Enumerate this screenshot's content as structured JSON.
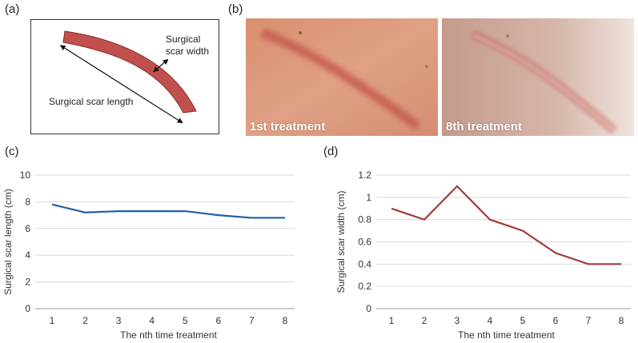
{
  "panels": {
    "a": "(a)",
    "b": "(b)",
    "c": "(c)",
    "d": "(d)"
  },
  "diagram": {
    "width_label_line1": "Surgical",
    "width_label_line2": "scar width",
    "length_label": "Surgical scar length",
    "scar_color": "#c0504d"
  },
  "photos": [
    {
      "caption": "1st treatment"
    },
    {
      "caption": "8th treatment"
    }
  ],
  "chart_data": [
    {
      "type": "line",
      "x": [
        1,
        2,
        3,
        4,
        5,
        6,
        7,
        8
      ],
      "values": [
        7.8,
        7.2,
        7.3,
        7.3,
        7.3,
        7.0,
        6.8,
        6.8
      ],
      "xlabel": "The nth time treatment",
      "ylabel": "Surgical scar length (cm)",
      "ylim": [
        0,
        10
      ],
      "yticks": [
        0,
        2,
        4,
        6,
        8,
        10
      ],
      "ytick_labels": [
        "0",
        "2",
        "4",
        "6",
        "8",
        "10"
      ],
      "grid": true,
      "color": "#1f5fa6"
    },
    {
      "type": "line",
      "x": [
        1,
        2,
        3,
        4,
        5,
        6,
        7,
        8
      ],
      "values": [
        0.9,
        0.8,
        1.1,
        0.8,
        0.7,
        0.5,
        0.4,
        0.4
      ],
      "xlabel": "The nth time treatment",
      "ylabel": "Surgical scar width (cm)",
      "ylim": [
        0,
        1.2
      ],
      "yticks": [
        0,
        0.2,
        0.4,
        0.6,
        0.8,
        1,
        1.2
      ],
      "ytick_labels": [
        "0",
        "0.2",
        "0.4",
        "0.6",
        "0.8",
        "1",
        "1.2"
      ],
      "grid": true,
      "color": "#a33a3a"
    }
  ]
}
